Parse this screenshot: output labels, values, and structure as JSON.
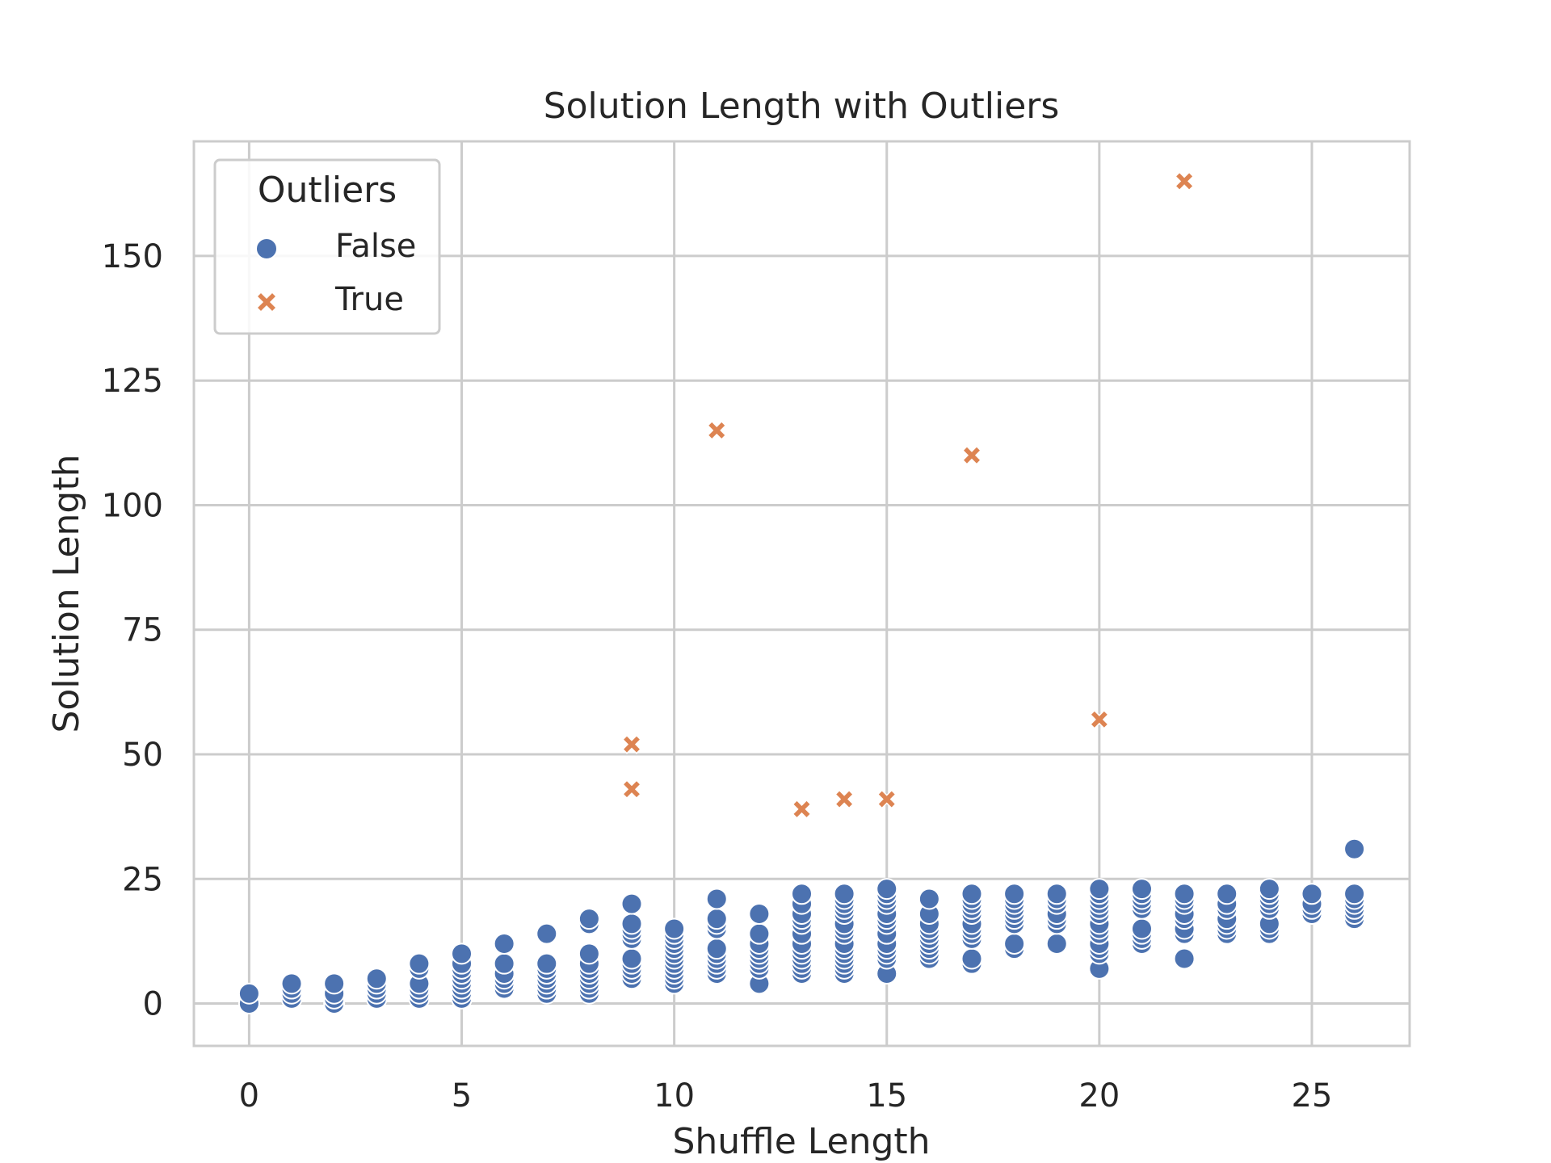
{
  "chart_data": {
    "type": "scatter",
    "title": "Solution Length with Outliers",
    "xlabel": "Shuffle Length",
    "ylabel": "Solution Length",
    "xlim": [
      -1.3,
      27.3
    ],
    "ylim": [
      -8.5,
      173
    ],
    "xticks": [
      0,
      5,
      10,
      15,
      20,
      25
    ],
    "yticks": [
      0,
      25,
      50,
      75,
      100,
      125,
      150
    ],
    "grid": true,
    "legend": {
      "title": "Outliers",
      "placement": "top-left",
      "entries": [
        "False",
        "True"
      ]
    },
    "colors": {
      "False": "#4c72b0",
      "True": "#dd8452"
    },
    "series": [
      {
        "name": "False",
        "marker": "circle",
        "points": [
          [
            0,
            0
          ],
          [
            0,
            2
          ],
          [
            1,
            1
          ],
          [
            1,
            2
          ],
          [
            1,
            3
          ],
          [
            1,
            4
          ],
          [
            2,
            0
          ],
          [
            2,
            1
          ],
          [
            2,
            2
          ],
          [
            2,
            4
          ],
          [
            3,
            1
          ],
          [
            3,
            2
          ],
          [
            3,
            3
          ],
          [
            3,
            4
          ],
          [
            3,
            5
          ],
          [
            4,
            1
          ],
          [
            4,
            2
          ],
          [
            4,
            3
          ],
          [
            4,
            4
          ],
          [
            4,
            7
          ],
          [
            4,
            8
          ],
          [
            5,
            1
          ],
          [
            5,
            2
          ],
          [
            5,
            3
          ],
          [
            5,
            4
          ],
          [
            5,
            5
          ],
          [
            5,
            6
          ],
          [
            5,
            7
          ],
          [
            5,
            8
          ],
          [
            5,
            10
          ],
          [
            6,
            3
          ],
          [
            6,
            4
          ],
          [
            6,
            5
          ],
          [
            6,
            6
          ],
          [
            6,
            8
          ],
          [
            6,
            12
          ],
          [
            7,
            2
          ],
          [
            7,
            3
          ],
          [
            7,
            4
          ],
          [
            7,
            5
          ],
          [
            7,
            6
          ],
          [
            7,
            7
          ],
          [
            7,
            8
          ],
          [
            7,
            14
          ],
          [
            8,
            2
          ],
          [
            8,
            3
          ],
          [
            8,
            4
          ],
          [
            8,
            5
          ],
          [
            8,
            6
          ],
          [
            8,
            7
          ],
          [
            8,
            8
          ],
          [
            8,
            10
          ],
          [
            8,
            16
          ],
          [
            8,
            17
          ],
          [
            9,
            5
          ],
          [
            9,
            6
          ],
          [
            9,
            7
          ],
          [
            9,
            8
          ],
          [
            9,
            9
          ],
          [
            9,
            13
          ],
          [
            9,
            14
          ],
          [
            9,
            15
          ],
          [
            9,
            16
          ],
          [
            9,
            20
          ],
          [
            10,
            4
          ],
          [
            10,
            5
          ],
          [
            10,
            6
          ],
          [
            10,
            7
          ],
          [
            10,
            8
          ],
          [
            10,
            9
          ],
          [
            10,
            10
          ],
          [
            10,
            11
          ],
          [
            10,
            12
          ],
          [
            10,
            13
          ],
          [
            10,
            14
          ],
          [
            10,
            15
          ],
          [
            11,
            6
          ],
          [
            11,
            7
          ],
          [
            11,
            8
          ],
          [
            11,
            9
          ],
          [
            11,
            10
          ],
          [
            11,
            11
          ],
          [
            11,
            15
          ],
          [
            11,
            16
          ],
          [
            11,
            17
          ],
          [
            11,
            21
          ],
          [
            12,
            4
          ],
          [
            12,
            7
          ],
          [
            12,
            8
          ],
          [
            12,
            9
          ],
          [
            12,
            10
          ],
          [
            12,
            11
          ],
          [
            12,
            12
          ],
          [
            12,
            14
          ],
          [
            12,
            18
          ],
          [
            13,
            6
          ],
          [
            13,
            7
          ],
          [
            13,
            8
          ],
          [
            13,
            9
          ],
          [
            13,
            10
          ],
          [
            13,
            11
          ],
          [
            13,
            12
          ],
          [
            13,
            14
          ],
          [
            13,
            16
          ],
          [
            13,
            17
          ],
          [
            13,
            18
          ],
          [
            13,
            20
          ],
          [
            13,
            22
          ],
          [
            14,
            6
          ],
          [
            14,
            7
          ],
          [
            14,
            8
          ],
          [
            14,
            9
          ],
          [
            14,
            10
          ],
          [
            14,
            11
          ],
          [
            14,
            12
          ],
          [
            14,
            14
          ],
          [
            14,
            15
          ],
          [
            14,
            16
          ],
          [
            14,
            18
          ],
          [
            14,
            19
          ],
          [
            14,
            20
          ],
          [
            14,
            21
          ],
          [
            14,
            22
          ],
          [
            15,
            6
          ],
          [
            15,
            9
          ],
          [
            15,
            10
          ],
          [
            15,
            11
          ],
          [
            15,
            12
          ],
          [
            15,
            14
          ],
          [
            15,
            16
          ],
          [
            15,
            17
          ],
          [
            15,
            18
          ],
          [
            15,
            20
          ],
          [
            15,
            21
          ],
          [
            15,
            22
          ],
          [
            15,
            23
          ],
          [
            16,
            9
          ],
          [
            16,
            10
          ],
          [
            16,
            11
          ],
          [
            16,
            12
          ],
          [
            16,
            13
          ],
          [
            16,
            14
          ],
          [
            16,
            15
          ],
          [
            16,
            16
          ],
          [
            16,
            18
          ],
          [
            16,
            21
          ],
          [
            17,
            8
          ],
          [
            17,
            9
          ],
          [
            17,
            13
          ],
          [
            17,
            14
          ],
          [
            17,
            15
          ],
          [
            17,
            16
          ],
          [
            17,
            18
          ],
          [
            17,
            19
          ],
          [
            17,
            20
          ],
          [
            17,
            21
          ],
          [
            17,
            22
          ],
          [
            18,
            11
          ],
          [
            18,
            12
          ],
          [
            18,
            16
          ],
          [
            18,
            17
          ],
          [
            18,
            18
          ],
          [
            18,
            19
          ],
          [
            18,
            20
          ],
          [
            18,
            21
          ],
          [
            18,
            22
          ],
          [
            19,
            12
          ],
          [
            19,
            16
          ],
          [
            19,
            17
          ],
          [
            19,
            18
          ],
          [
            19,
            20
          ],
          [
            19,
            21
          ],
          [
            19,
            22
          ],
          [
            20,
            7
          ],
          [
            20,
            10
          ],
          [
            20,
            11
          ],
          [
            20,
            12
          ],
          [
            20,
            14
          ],
          [
            20,
            15
          ],
          [
            20,
            16
          ],
          [
            20,
            18
          ],
          [
            20,
            19
          ],
          [
            20,
            20
          ],
          [
            20,
            21
          ],
          [
            20,
            22
          ],
          [
            20,
            23
          ],
          [
            21,
            12
          ],
          [
            21,
            13
          ],
          [
            21,
            14
          ],
          [
            21,
            15
          ],
          [
            21,
            19
          ],
          [
            21,
            20
          ],
          [
            21,
            21
          ],
          [
            21,
            22
          ],
          [
            21,
            23
          ],
          [
            22,
            9
          ],
          [
            22,
            14
          ],
          [
            22,
            15
          ],
          [
            22,
            17
          ],
          [
            22,
            18
          ],
          [
            22,
            20
          ],
          [
            22,
            21
          ],
          [
            22,
            22
          ],
          [
            23,
            14
          ],
          [
            23,
            15
          ],
          [
            23,
            16
          ],
          [
            23,
            17
          ],
          [
            23,
            19
          ],
          [
            23,
            20
          ],
          [
            23,
            22
          ],
          [
            24,
            14
          ],
          [
            24,
            15
          ],
          [
            24,
            16
          ],
          [
            24,
            19
          ],
          [
            24,
            20
          ],
          [
            24,
            21
          ],
          [
            24,
            22
          ],
          [
            24,
            23
          ],
          [
            25,
            18
          ],
          [
            25,
            19
          ],
          [
            25,
            20
          ],
          [
            25,
            22
          ],
          [
            26,
            17
          ],
          [
            26,
            18
          ],
          [
            26,
            19
          ],
          [
            26,
            20
          ],
          [
            26,
            21
          ],
          [
            26,
            22
          ],
          [
            26,
            31
          ]
        ]
      },
      {
        "name": "True",
        "marker": "x",
        "points": [
          [
            9,
            52
          ],
          [
            9,
            43
          ],
          [
            11,
            115
          ],
          [
            13,
            39
          ],
          [
            14,
            41
          ],
          [
            15,
            41
          ],
          [
            17,
            110
          ],
          [
            20,
            57
          ],
          [
            22,
            165
          ]
        ]
      }
    ]
  }
}
